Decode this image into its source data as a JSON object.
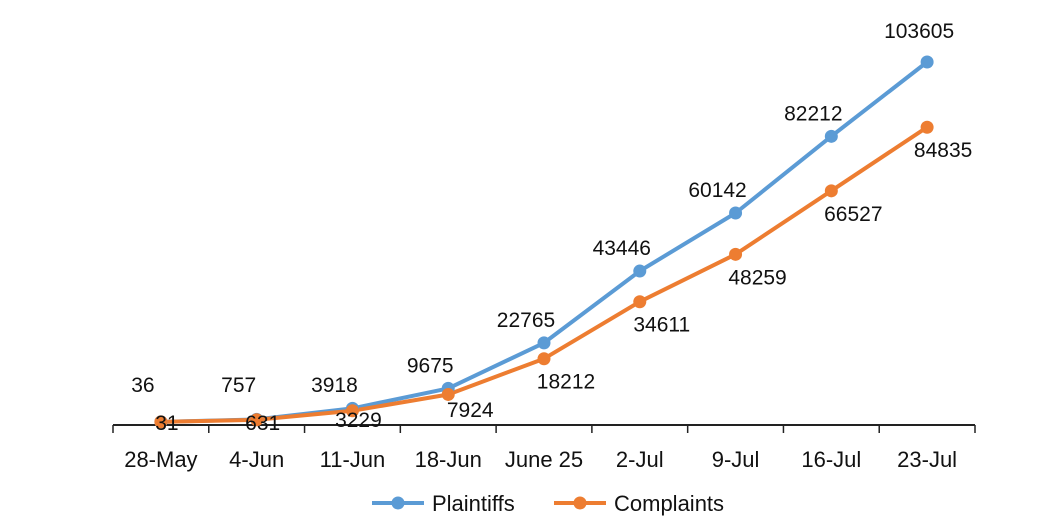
{
  "chart_data": {
    "type": "line",
    "categories": [
      "28-May",
      "4-Jun",
      "11-Jun",
      "18-Jun",
      "June 25",
      "2-Jul",
      "9-Jul",
      "16-Jul",
      "23-Jul"
    ],
    "series": [
      {
        "name": "Plaintiffs",
        "color": "#5B9BD5",
        "values": [
          36,
          757,
          3918,
          9675,
          22765,
          43446,
          60142,
          82212,
          103605
        ]
      },
      {
        "name": "Complaints",
        "color": "#ED7D31",
        "values": [
          31,
          631,
          3229,
          7924,
          18212,
          34611,
          48259,
          66527,
          84835
        ]
      }
    ],
    "title": "",
    "xlabel": "",
    "ylabel": "",
    "ylim": [
      0,
      110000
    ],
    "grid": false,
    "legend": "bottom-center"
  }
}
